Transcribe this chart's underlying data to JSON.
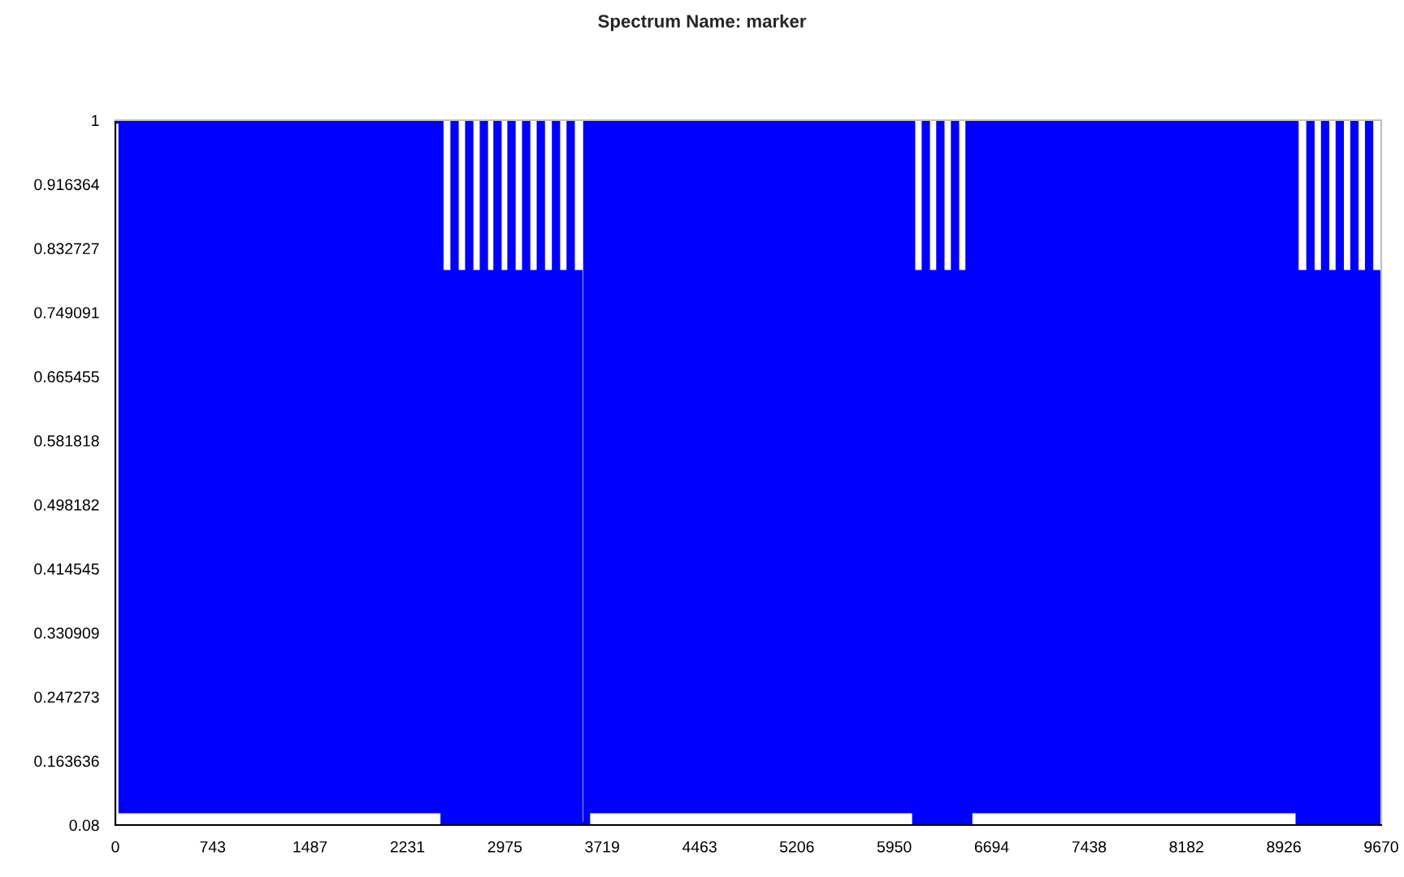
{
  "chart_data": {
    "type": "step",
    "title": "Spectrum Name: marker",
    "xlim": [
      0,
      9670
    ],
    "xticks": [
      0,
      743,
      1487,
      2231,
      2975,
      3719,
      4463,
      5206,
      5950,
      6694,
      7438,
      8182,
      8926,
      9670
    ],
    "ylim": [
      0.08,
      1
    ],
    "yticks": [
      0.08,
      0.163636,
      0.247273,
      0.330909,
      0.414545,
      0.498182,
      0.581818,
      0.665455,
      0.749091,
      0.832727,
      0.916364,
      1
    ],
    "grid": false,
    "marker": "none",
    "line_style": "solid",
    "series": [
      {
        "color": "#0000ff",
        "x": [
          0,
          50,
          100,
          150,
          200,
          250,
          300,
          350,
          400,
          450,
          500,
          550,
          600,
          650,
          700,
          750,
          800,
          850,
          900,
          950,
          1000,
          1050,
          1100,
          1150,
          1200,
          1250,
          1300,
          1350,
          1400,
          1450,
          1500,
          1550,
          1600,
          1650,
          1700,
          1750,
          1800,
          1850,
          1900,
          1950,
          2000,
          2050,
          2100,
          2150,
          2200,
          2250,
          2300,
          2350,
          2400,
          2450,
          2465,
          2480,
          2510,
          2540,
          2570,
          2586,
          2596,
          2626,
          2656,
          2686,
          2698,
          2708,
          2738,
          2768,
          2798,
          2810,
          2820,
          2850,
          2880,
          2900,
          2914,
          2924,
          2954,
          2984,
          3010,
          3021,
          3031,
          3061,
          3091,
          3121,
          3133,
          3143,
          3173,
          3203,
          3233,
          3245,
          3255,
          3285,
          3315,
          3345,
          3361,
          3371,
          3401,
          3431,
          3461,
          3473,
          3483,
          3513,
          3543,
          3573,
          3600,
          3650,
          3700,
          3750,
          3800,
          3850,
          3900,
          3950,
          4000,
          4050,
          4100,
          4150,
          4200,
          4250,
          4300,
          4350,
          4400,
          4450,
          4500,
          4550,
          4600,
          4650,
          4700,
          4750,
          4800,
          4850,
          4900,
          4950,
          5000,
          5050,
          5100,
          5150,
          5200,
          5250,
          5300,
          5350,
          5400,
          5450,
          5500,
          5550,
          5600,
          5650,
          5700,
          5750,
          5800,
          5850,
          5900,
          5950,
          6000,
          6050,
          6070,
          6083,
          6113,
          6143,
          6176,
          6186,
          6196,
          6226,
          6256,
          6286,
          6297,
          6307,
          6337,
          6367,
          6397,
          6409,
          6419,
          6449,
          6479,
          6509,
          6520,
          6570,
          6620,
          6670,
          6720,
          6770,
          6820,
          6870,
          6920,
          6970,
          7020,
          7070,
          7120,
          7170,
          7220,
          7270,
          7320,
          7370,
          7420,
          7470,
          7520,
          7570,
          7620,
          7670,
          7720,
          7770,
          7820,
          7870,
          7920,
          7970,
          8020,
          8070,
          8120,
          8170,
          8220,
          8270,
          8320,
          8370,
          8420,
          8470,
          8520,
          8570,
          8620,
          8670,
          8720,
          8770,
          8820,
          8870,
          8920,
          8970,
          8995,
          9012,
          9042,
          9072,
          9102,
          9124,
          9134,
          9164,
          9194,
          9224,
          9236,
          9246,
          9276,
          9306,
          9336,
          9348,
          9358,
          9388,
          9418,
          9448,
          9460,
          9470,
          9500,
          9530,
          9560,
          9572,
          9582,
          9612,
          9642,
          9670
        ],
        "values": [
          1,
          0.1,
          1,
          0.1,
          1,
          0.1,
          1,
          0.1,
          1,
          0.1,
          1,
          0.1,
          1,
          0.1,
          1,
          0.1,
          1,
          0.1,
          1,
          0.1,
          1,
          0.1,
          1,
          0.1,
          1,
          0.1,
          1,
          0.1,
          1,
          0.1,
          1,
          0.1,
          1,
          0.1,
          1,
          0.1,
          1,
          0.1,
          1,
          0.1,
          1,
          0.1,
          1,
          0.1,
          1,
          0.1,
          1,
          0.1,
          1,
          0.1,
          1,
          0.8,
          0.08,
          0.8,
          0.08,
          1,
          0.08,
          0.8,
          0.08,
          0.8,
          1,
          0.08,
          0.8,
          0.08,
          0.8,
          1,
          0.08,
          0.8,
          0.08,
          0.8,
          1,
          0.08,
          0.8,
          0.08,
          0.8,
          1,
          0.08,
          0.8,
          0.08,
          0.8,
          1,
          0.08,
          0.8,
          0.08,
          0.8,
          1,
          0.08,
          0.8,
          0.08,
          0.8,
          1,
          0.08,
          0.8,
          0.08,
          0.8,
          1,
          0.08,
          0.8,
          0.08,
          0.08,
          1,
          0.1,
          1,
          0.1,
          1,
          0.1,
          1,
          0.1,
          1,
          0.1,
          1,
          0.1,
          1,
          0.1,
          1,
          0.1,
          1,
          0.1,
          1,
          0.1,
          1,
          0.1,
          1,
          0.1,
          1,
          0.1,
          1,
          0.1,
          1,
          0.1,
          1,
          0.1,
          1,
          0.1,
          1,
          0.1,
          1,
          0.1,
          1,
          0.1,
          1,
          0.1,
          1,
          0.1,
          1,
          0.1,
          1,
          0.1,
          1,
          0.1,
          1,
          0.8,
          0.08,
          0.8,
          0.08,
          1,
          0.08,
          0.8,
          0.08,
          0.8,
          1,
          0.08,
          0.8,
          0.08,
          0.8,
          1,
          0.08,
          0.8,
          0.08,
          0.08,
          1,
          0.1,
          1,
          0.1,
          1,
          0.1,
          1,
          0.1,
          1,
          0.1,
          1,
          0.1,
          1,
          0.1,
          1,
          0.1,
          1,
          0.1,
          1,
          0.1,
          1,
          0.1,
          1,
          0.1,
          1,
          0.1,
          1,
          0.1,
          1,
          0.1,
          1,
          0.1,
          1,
          0.1,
          1,
          0.1,
          1,
          0.1,
          1,
          0.1,
          1,
          0.1,
          1,
          0.1,
          1,
          0.1,
          1,
          0.1,
          1,
          0.1,
          1,
          0.8,
          0.08,
          0.8,
          0.08,
          1,
          0.08,
          0.8,
          0.08,
          0.8,
          1,
          0.08,
          0.8,
          0.08,
          0.8,
          1,
          0.08,
          0.8,
          0.08,
          0.8,
          1,
          0.08,
          0.8,
          0.08,
          0.8,
          1,
          0.08,
          0.8,
          0.08,
          0.8
        ]
      }
    ]
  }
}
